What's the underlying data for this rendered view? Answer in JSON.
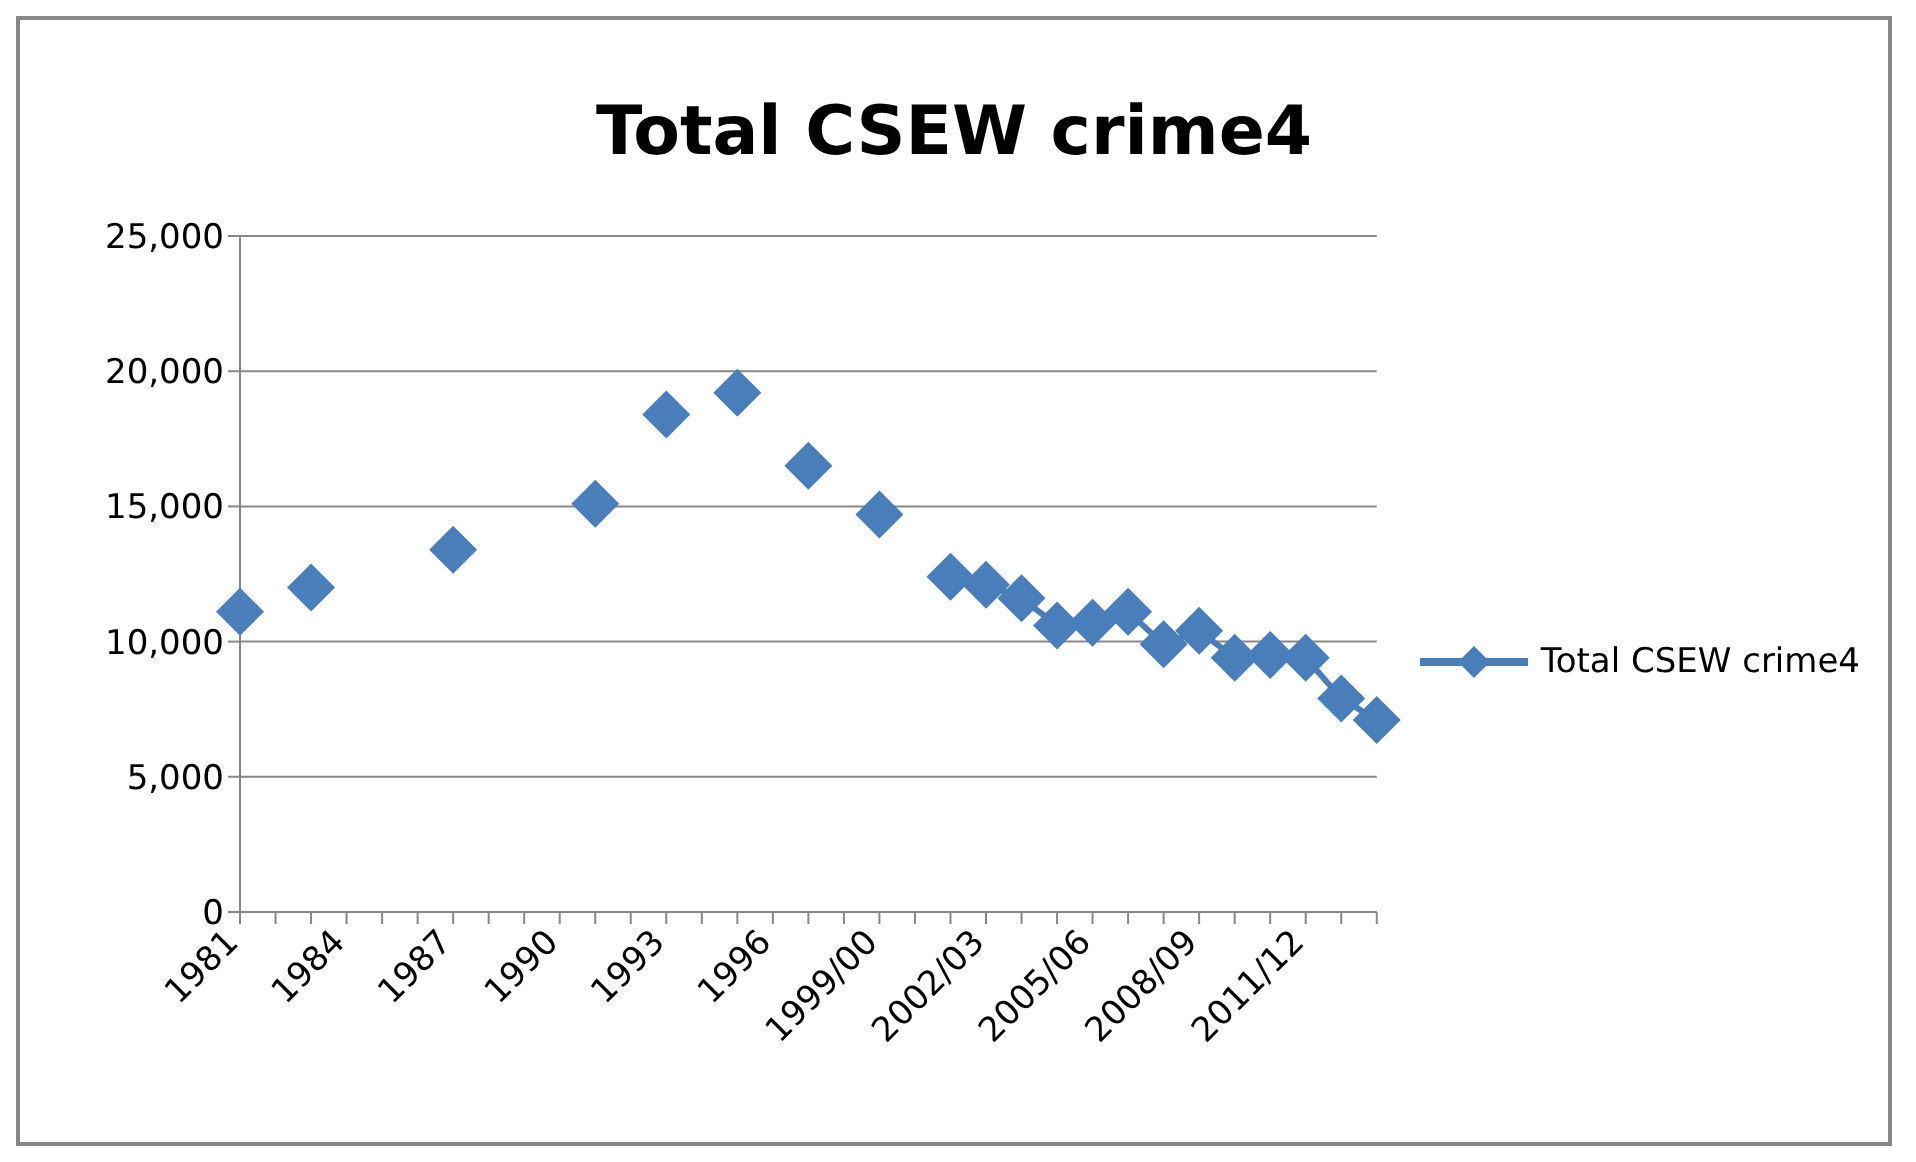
{
  "chart_data": {
    "type": "line",
    "title": "Total CSEW crime4",
    "categories": [
      "1981",
      null,
      null,
      "1984",
      null,
      null,
      "1987",
      null,
      null,
      "1990",
      null,
      null,
      "1993",
      null,
      null,
      "1996",
      null,
      null,
      "1999/00",
      null,
      null,
      "2002/03",
      null,
      null,
      "2005/06",
      null,
      null,
      "2008/09",
      null,
      null,
      "2011/12",
      null,
      null
    ],
    "series": [
      {
        "name": "Total CSEW crime4",
        "color": "#4a7ebb",
        "values": [
          11100,
          null,
          12000,
          null,
          null,
          null,
          13400,
          null,
          null,
          null,
          15100,
          null,
          18400,
          null,
          19200,
          null,
          16500,
          null,
          14700,
          null,
          12400,
          12100,
          11600,
          10600,
          10700,
          11100,
          9900,
          10400,
          9400,
          9500,
          9400,
          7900,
          7100
        ]
      }
    ],
    "ylim": [
      0,
      25000
    ],
    "yticks": [
      {
        "value": 0,
        "label": "0"
      },
      {
        "value": 5000,
        "label": "5,000"
      },
      {
        "value": 10000,
        "label": "10,000"
      },
      {
        "value": 15000,
        "label": "15,000"
      },
      {
        "value": 20000,
        "label": "20,000"
      },
      {
        "value": 25000,
        "label": "25,000"
      }
    ],
    "grid": "y",
    "legend": "right",
    "marker": "diamond",
    "line_style": "solid"
  }
}
